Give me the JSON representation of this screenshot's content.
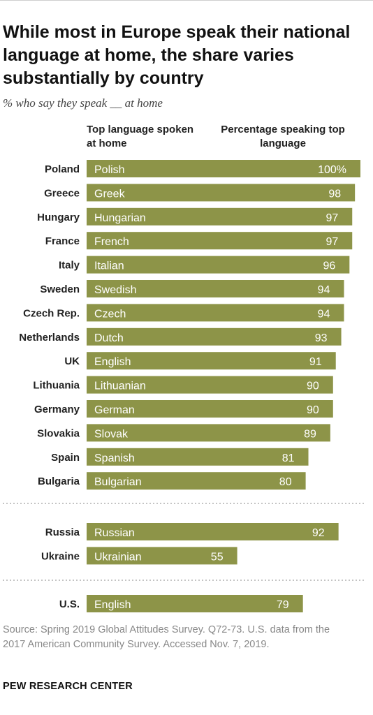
{
  "title": "While most in Europe speak their national language at home, the share varies substantially by country",
  "subtitle": "% who say they speak __ at home",
  "column_headers": {
    "language": "Top language spoken at home",
    "percentage": "Percentage speaking top language"
  },
  "colors": {
    "bar": "#8d9448",
    "bar_text": "#ffffff"
  },
  "chart_data": {
    "type": "bar",
    "orientation": "horizontal",
    "xlim": [
      0,
      100
    ],
    "groups": [
      {
        "rows": [
          {
            "country": "Poland",
            "language": "Polish",
            "value": 100,
            "label": "100%"
          },
          {
            "country": "Greece",
            "language": "Greek",
            "value": 98,
            "label": "98"
          },
          {
            "country": "Hungary",
            "language": "Hungarian",
            "value": 97,
            "label": "97"
          },
          {
            "country": "France",
            "language": "French",
            "value": 97,
            "label": "97"
          },
          {
            "country": "Italy",
            "language": "Italian",
            "value": 96,
            "label": "96"
          },
          {
            "country": "Sweden",
            "language": "Swedish",
            "value": 94,
            "label": "94"
          },
          {
            "country": "Czech Rep.",
            "language": "Czech",
            "value": 94,
            "label": "94"
          },
          {
            "country": "Netherlands",
            "language": "Dutch",
            "value": 93,
            "label": "93"
          },
          {
            "country": "UK",
            "language": "English",
            "value": 91,
            "label": "91"
          },
          {
            "country": "Lithuania",
            "language": "Lithuanian",
            "value": 90,
            "label": "90"
          },
          {
            "country": "Germany",
            "language": "German",
            "value": 90,
            "label": "90"
          },
          {
            "country": "Slovakia",
            "language": "Slovak",
            "value": 89,
            "label": "89"
          },
          {
            "country": "Spain",
            "language": "Spanish",
            "value": 81,
            "label": "81"
          },
          {
            "country": "Bulgaria",
            "language": "Bulgarian",
            "value": 80,
            "label": "80"
          }
        ]
      },
      {
        "rows": [
          {
            "country": "Russia",
            "language": "Russian",
            "value": 92,
            "label": "92"
          },
          {
            "country": "Ukraine",
            "language": "Ukrainian",
            "value": 55,
            "label": "55"
          }
        ]
      },
      {
        "rows": [
          {
            "country": "U.S.",
            "language": "English",
            "value": 79,
            "label": "79"
          }
        ]
      }
    ]
  },
  "source": "Source: Spring 2019 Global Attitudes Survey. Q72-73. U.S. data from the 2017 American Community Survey. Accessed Nov. 7, 2019.",
  "brand": "PEW RESEARCH CENTER"
}
